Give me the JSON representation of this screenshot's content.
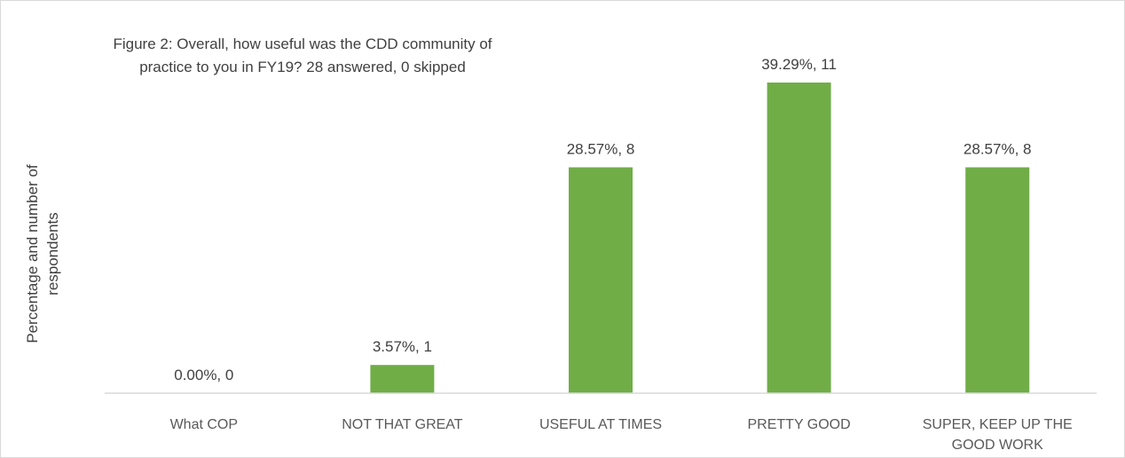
{
  "chart_data": {
    "type": "bar",
    "title": "Figure 2: Overall, how useful was the CDD community of practice to you in FY19?  28 answered, 0 skipped",
    "title_lines": [
      "Figure 2: Overall, how useful was the CDD community of",
      "practice to you in FY19?  28 answered, 0 skipped"
    ],
    "ylabel": "Percentage and number of respondents",
    "ylabel_lines": [
      "Percentage and number of",
      "respondents"
    ],
    "xlabel": "",
    "categories": [
      "What COP",
      "NOT THAT GREAT",
      "USEFUL AT TIMES",
      "PRETTY GOOD",
      "SUPER, KEEP UP THE GOOD WORK"
    ],
    "category_lines": [
      [
        "What COP"
      ],
      [
        "NOT THAT GREAT"
      ],
      [
        "USEFUL AT TIMES"
      ],
      [
        "PRETTY GOOD"
      ],
      [
        "SUPER, KEEP UP THE",
        "GOOD WORK"
      ]
    ],
    "values": [
      0.0,
      3.57,
      28.57,
      39.29,
      28.57
    ],
    "counts": [
      0,
      1,
      8,
      11,
      8
    ],
    "data_labels": [
      "0.00%, 0",
      "3.57%, 1",
      "28.57%, 8",
      "39.29%, 11",
      "28.57%, 8"
    ],
    "ylim": [
      0,
      39.29
    ],
    "grid": false,
    "legend": "none",
    "bar_color": "#70ad47",
    "axis_color": "#d9d9d9"
  }
}
